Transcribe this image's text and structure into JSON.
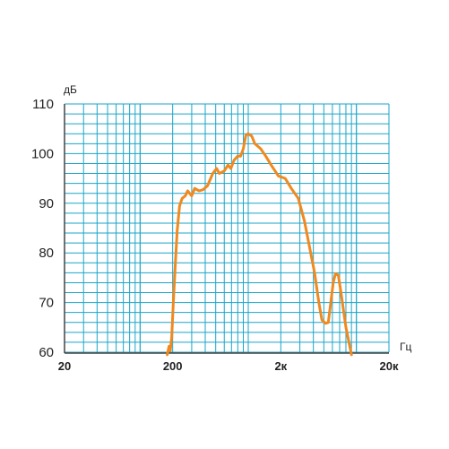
{
  "chart_data": {
    "type": "line",
    "title": "",
    "ylabel": "дБ",
    "xlabel": "Гц",
    "x_scale": "log",
    "xlim": [
      20,
      20000
    ],
    "ylim": [
      60,
      110
    ],
    "grid": true,
    "colors": {
      "grid": "#1aa5c9",
      "axis": "#444444",
      "series": "#f0891f"
    },
    "x_ticks": [
      {
        "value": 20,
        "label": "20"
      },
      {
        "value": 200,
        "label": "200"
      },
      {
        "value": 2000,
        "label": "2к"
      },
      {
        "value": 20000,
        "label": "20к"
      }
    ],
    "y_ticks": [
      {
        "value": 60,
        "label": "60"
      },
      {
        "value": 70,
        "label": "70"
      },
      {
        "value": 80,
        "label": "80"
      },
      {
        "value": 90,
        "label": "90"
      },
      {
        "value": 100,
        "label": "100"
      },
      {
        "value": 110,
        "label": "110"
      }
    ],
    "series": [
      {
        "points": [
          [
            178,
            59.5
          ],
          [
            185,
            61.2
          ],
          [
            190,
            60.3
          ],
          [
            196,
            63
          ],
          [
            203,
            70
          ],
          [
            212,
            78
          ],
          [
            220,
            84.5
          ],
          [
            232,
            89.5
          ],
          [
            245,
            91
          ],
          [
            262,
            91.5
          ],
          [
            275,
            92.5
          ],
          [
            300,
            91.5
          ],
          [
            320,
            93
          ],
          [
            350,
            92.5
          ],
          [
            380,
            92.7
          ],
          [
            420,
            93.5
          ],
          [
            470,
            96
          ],
          [
            510,
            97
          ],
          [
            540,
            96
          ],
          [
            600,
            96.5
          ],
          [
            650,
            97.7
          ],
          [
            690,
            97
          ],
          [
            740,
            98.7
          ],
          [
            800,
            99.5
          ],
          [
            850,
            99.5
          ],
          [
            900,
            101
          ],
          [
            950,
            103.7
          ],
          [
            1000,
            104
          ],
          [
            1080,
            103.5
          ],
          [
            1150,
            102
          ],
          [
            1300,
            101
          ],
          [
            1450,
            99.5
          ],
          [
            1650,
            97.5
          ],
          [
            1900,
            95.5
          ],
          [
            2200,
            95
          ],
          [
            2500,
            93
          ],
          [
            2900,
            91
          ],
          [
            3300,
            86.5
          ],
          [
            3700,
            81
          ],
          [
            4100,
            76
          ],
          [
            4500,
            70
          ],
          [
            4800,
            66.5
          ],
          [
            5200,
            65.8
          ],
          [
            5500,
            66
          ],
          [
            5800,
            70
          ],
          [
            6100,
            74
          ],
          [
            6400,
            75.8
          ],
          [
            6800,
            75.5
          ],
          [
            7200,
            72
          ],
          [
            8000,
            65
          ],
          [
            9000,
            59.5
          ]
        ]
      }
    ]
  }
}
